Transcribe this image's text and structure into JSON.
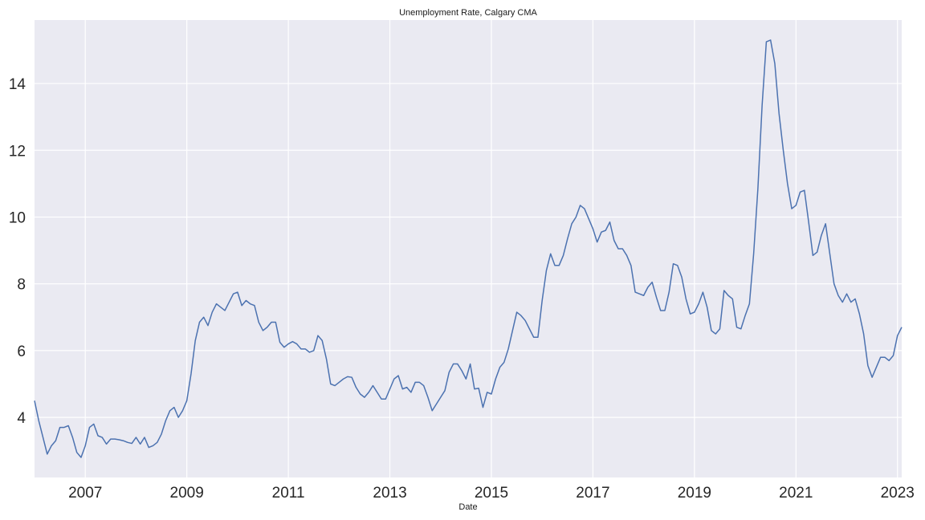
{
  "chart_data": {
    "type": "line",
    "title": "Unemployment Rate, Calgary CMA",
    "xlabel": "Date",
    "ylabel": "",
    "grid": true,
    "legend": "none",
    "colors": {
      "background": "#eaeaf2",
      "grid": "#ffffff",
      "line": "#4c72b0"
    },
    "xlim": [
      "2006-01",
      "2023-02"
    ],
    "ylim": [
      2.2,
      15.9
    ],
    "xticks": [
      "2007",
      "2009",
      "2011",
      "2013",
      "2015",
      "2017",
      "2019",
      "2021",
      "2023"
    ],
    "yticks": [
      "4",
      "6",
      "8",
      "10",
      "12",
      "14"
    ],
    "series": [
      {
        "start": "2006-01",
        "frequency": "monthly",
        "values": [
          4.5,
          3.9,
          3.4,
          2.9,
          3.15,
          3.3,
          3.7,
          3.7,
          3.75,
          3.4,
          2.95,
          2.8,
          3.15,
          3.7,
          3.8,
          3.45,
          3.4,
          3.2,
          3.35,
          3.35,
          3.33,
          3.3,
          3.25,
          3.22,
          3.4,
          3.2,
          3.4,
          3.1,
          3.15,
          3.25,
          3.5,
          3.9,
          4.2,
          4.3,
          4.0,
          4.2,
          4.5,
          5.3,
          6.3,
          6.85,
          7.0,
          6.75,
          7.15,
          7.4,
          7.3,
          7.2,
          7.45,
          7.7,
          7.75,
          7.35,
          7.5,
          7.4,
          7.35,
          6.85,
          6.6,
          6.7,
          6.85,
          6.85,
          6.25,
          6.1,
          6.2,
          6.27,
          6.2,
          6.05,
          6.05,
          5.95,
          6.0,
          6.45,
          6.3,
          5.75,
          5.0,
          4.95,
          5.05,
          5.15,
          5.22,
          5.2,
          4.9,
          4.7,
          4.6,
          4.75,
          4.95,
          4.75,
          4.55,
          4.55,
          4.85,
          5.15,
          5.25,
          4.85,
          4.9,
          4.75,
          5.05,
          5.05,
          4.95,
          4.6,
          4.2,
          4.4,
          4.6,
          4.8,
          5.35,
          5.6,
          5.6,
          5.4,
          5.15,
          5.6,
          4.85,
          4.87,
          4.3,
          4.75,
          4.7,
          5.15,
          5.5,
          5.65,
          6.05,
          6.6,
          7.15,
          7.05,
          6.9,
          6.65,
          6.4,
          6.4,
          7.5,
          8.4,
          8.9,
          8.55,
          8.55,
          8.85,
          9.35,
          9.8,
          10.0,
          10.35,
          10.25,
          9.95,
          9.65,
          9.25,
          9.55,
          9.6,
          9.85,
          9.3,
          9.05,
          9.05,
          8.85,
          8.55,
          7.75,
          7.7,
          7.65,
          7.9,
          8.05,
          7.6,
          7.2,
          7.2,
          7.75,
          8.6,
          8.55,
          8.2,
          7.55,
          7.1,
          7.15,
          7.4,
          7.75,
          7.3,
          6.6,
          6.5,
          6.65,
          7.8,
          7.65,
          7.55,
          6.7,
          6.65,
          7.05,
          7.4,
          8.9,
          10.85,
          13.35,
          15.25,
          15.3,
          14.6,
          13.1,
          12.0,
          11.0,
          10.25,
          10.35,
          10.75,
          10.8,
          9.85,
          8.85,
          8.95,
          9.45,
          9.8,
          8.9,
          8.0,
          7.65,
          7.45,
          7.7,
          7.45,
          7.55,
          7.1,
          6.5,
          5.55,
          5.2,
          5.5,
          5.8,
          5.8,
          5.7,
          5.85,
          6.45,
          6.7
        ]
      }
    ]
  }
}
